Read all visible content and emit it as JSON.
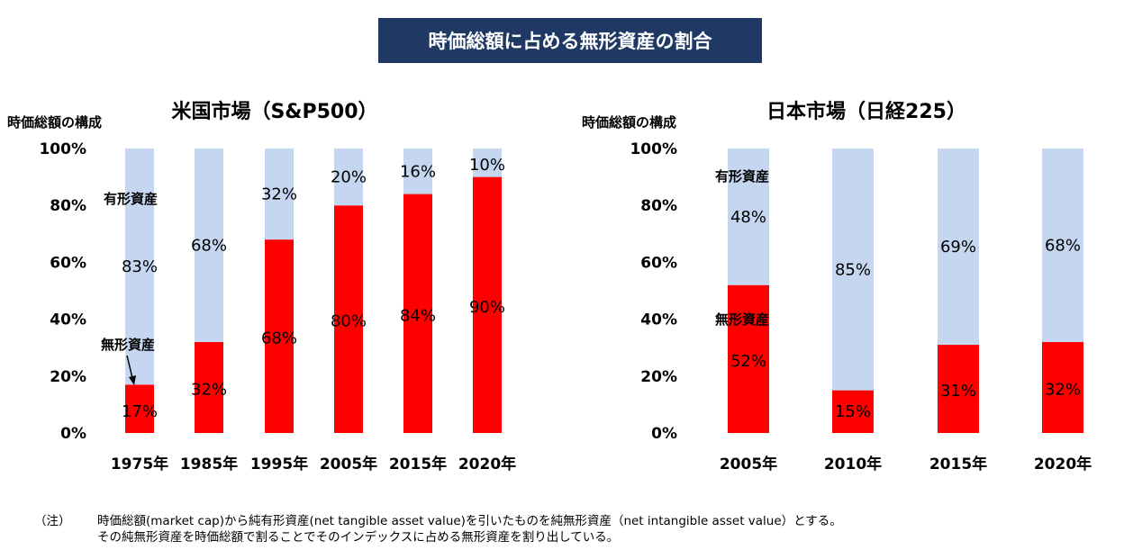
{
  "main_title": "時価総額に占める無形資産の割合",
  "chart_data": [
    {
      "type": "bar",
      "stacked": true,
      "title": "米国市場（S&P500）",
      "ylabel": "時価総額の構成",
      "categories": [
        "1975年",
        "1985年",
        "1995年",
        "2005年",
        "2015年",
        "2020年"
      ],
      "series": [
        {
          "name": "無形資産",
          "values": [
            17,
            32,
            68,
            80,
            84,
            90
          ],
          "labels": [
            "17%",
            "32%",
            "68%",
            "80%",
            "84%",
            "90%"
          ],
          "color": "#ff0000"
        },
        {
          "name": "有形資産",
          "values": [
            83,
            68,
            32,
            20,
            16,
            10
          ],
          "labels": [
            "83%",
            "68%",
            "32%",
            "20%",
            "16%",
            "10%"
          ],
          "color": "#c5d7f0"
        }
      ],
      "ylim": [
        0,
        100
      ],
      "yticks": [
        "0%",
        "20%",
        "40%",
        "60%",
        "80%",
        "100%"
      ],
      "grid": false
    },
    {
      "type": "bar",
      "stacked": true,
      "title": "日本市場（日経225）",
      "ylabel": "時価総額の構成",
      "categories": [
        "2005年",
        "2010年",
        "2015年",
        "2020年"
      ],
      "series": [
        {
          "name": "無形資産",
          "values": [
            52,
            15,
            31,
            32
          ],
          "labels": [
            "52%",
            "15%",
            "31%",
            "32%"
          ],
          "color": "#ff0000"
        },
        {
          "name": "有形資産",
          "values": [
            48,
            85,
            69,
            68
          ],
          "labels": [
            "48%",
            "85%",
            "69%",
            "68%"
          ],
          "color": "#c5d7f0"
        }
      ],
      "ylim": [
        0,
        100
      ],
      "yticks": [
        "0%",
        "20%",
        "40%",
        "60%",
        "80%",
        "100%"
      ],
      "grid": false
    }
  ],
  "note": {
    "marker": "（注）",
    "line1": "時価総額(market cap)から純有形資産(net tangible asset value)を引いたものを純無形資産（net intangible asset value）とする。",
    "line2": "その純無形資産を時価総額で割ることでそのインデックスに占める無形資産を割り出している。"
  }
}
